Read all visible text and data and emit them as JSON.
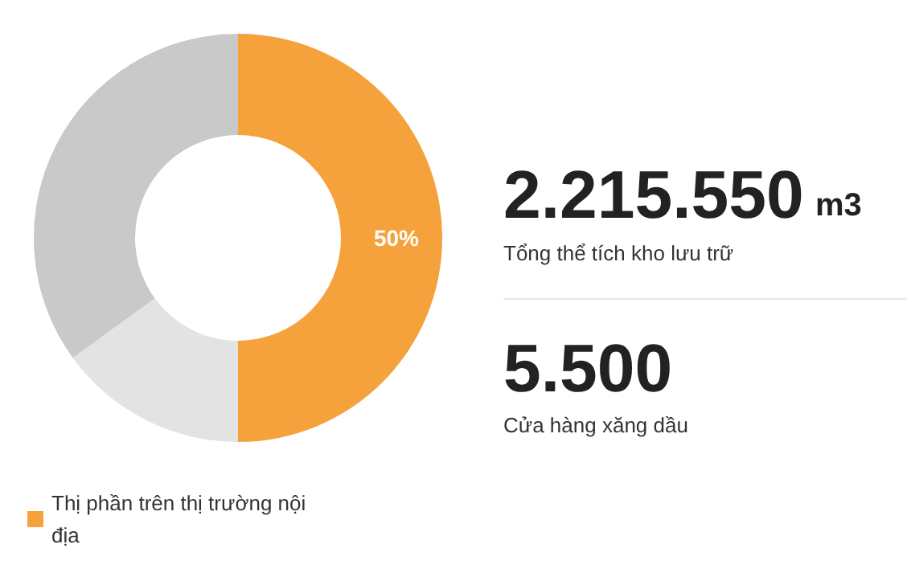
{
  "chart_data": {
    "type": "donut",
    "categories": [
      "Thị phần trên thị trường nội địa",
      null,
      null
    ],
    "values": [
      50,
      15,
      35
    ],
    "colors": [
      "#f5a23c",
      "#e3e3e3",
      "#c9c9c9"
    ],
    "value_labels": [
      "50%",
      null,
      null
    ],
    "legend": "bottom left",
    "annotations": [
      "2.215.550",
      "m3",
      "Tổng thể tích kho lưu trữ",
      "5.500",
      "Cửa hàng xăng dầu"
    ]
  }
}
